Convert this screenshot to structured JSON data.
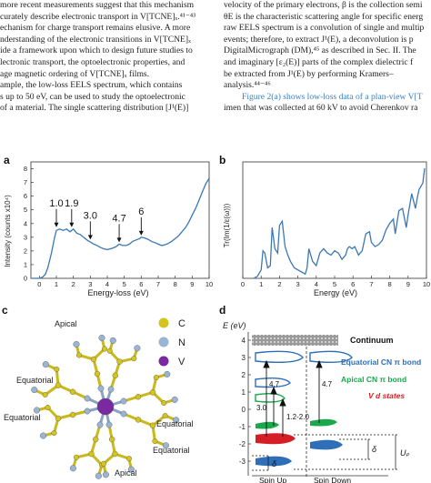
{
  "text": {
    "left": [
      "more recent measurements suggest that this mechanism",
      "curately describe electronic transport in V[TCNE]ₓ.⁴¹⁻⁴³",
      "echanism for charge transport remains elusive. A more",
      "nderstanding of the electronic transitions in V[TCNE]ₓ",
      "ide a framework upon which to design future studies to",
      "lectronic transport, the optoelectronic properties, and",
      "age magnetic ordering of V[TCNE]ₓ films.",
      "ample, the low-loss EELS spectrum, which contains",
      "s up to 50 eV, can be used to study the optoelectronic",
      "of a material. The single scattering distribution [J¹(E)]"
    ],
    "right": [
      "velocity of the primary electrons, β is the collection semi",
      "θE is the characteristic scattering angle for specific energ",
      "raw EELS spectrum is a convolution of single and multip",
      "events; therefore, to extract J¹(E), a deconvolution is p",
      "DigitalMicrograph (DM),⁴⁵ as described in Sec. II. The",
      "and imaginary [ε₂(E)] parts of the complex dielectric f",
      "be extracted from J¹(E) by performing Kramers–",
      "analysis.⁴⁴⁻⁴⁶",
      "Figure 2(a) shows low-loss data of a plan-view V[T",
      "imen that was collected at 60 kV to avoid Cherenkov ra"
    ]
  },
  "panels": {
    "a": "a",
    "b": "b",
    "c": "c",
    "d": "d"
  },
  "chart_a": {
    "type": "line",
    "xlabel": "Energy-loss (eV)",
    "ylabel": "Intensity (counts x10⁴)",
    "xticks": [
      "0",
      "1",
      "2",
      "3",
      "4",
      "5",
      "6",
      "7",
      "8",
      "9",
      "10"
    ],
    "yticks": [
      "0",
      "1",
      "2",
      "3",
      "4",
      "5",
      "6",
      "7",
      "8"
    ],
    "xlim": [
      -0.5,
      10
    ],
    "ylim": [
      0,
      8.5
    ],
    "color": "#3b78b5",
    "x": [
      -0.5,
      -0.2,
      0,
      0.2,
      0.35,
      0.5,
      0.7,
      0.9,
      1.0,
      1.2,
      1.4,
      1.6,
      1.8,
      2.0,
      2.2,
      2.4,
      2.6,
      2.8,
      3.0,
      3.2,
      3.4,
      3.6,
      3.8,
      4.0,
      4.3,
      4.5,
      4.7,
      4.9,
      5.1,
      5.3,
      5.5,
      5.7,
      5.9,
      6.0,
      6.2,
      6.4,
      6.6,
      6.8,
      7.0,
      7.2,
      7.4,
      7.6,
      7.8,
      8.0,
      8.2,
      8.4,
      8.6,
      8.8,
      9.0,
      9.2,
      9.4,
      9.6,
      9.8,
      10.0
    ],
    "y": [
      0,
      0,
      0,
      0.1,
      0.3,
      0.8,
      1.8,
      3.0,
      3.5,
      3.6,
      3.5,
      3.6,
      3.4,
      3.6,
      3.3,
      3.2,
      3.0,
      2.8,
      2.65,
      2.5,
      2.4,
      2.25,
      2.15,
      2.1,
      2.2,
      2.3,
      2.5,
      2.4,
      2.4,
      2.5,
      2.7,
      2.8,
      2.9,
      3.0,
      2.95,
      2.85,
      2.7,
      2.6,
      2.5,
      2.4,
      2.45,
      2.55,
      2.7,
      2.9,
      3.1,
      3.4,
      3.7,
      4.1,
      4.6,
      5.1,
      5.7,
      6.3,
      6.9,
      7.3
    ],
    "annotations": [
      {
        "label": "1.0",
        "x": 1.0,
        "y": 3.6
      },
      {
        "label": "1.9",
        "x": 1.9,
        "y": 3.6
      },
      {
        "label": "3.0",
        "x": 3.0,
        "y": 2.7
      },
      {
        "label": "4.7",
        "x": 4.7,
        "y": 2.5
      },
      {
        "label": "6",
        "x": 6.0,
        "y": 3.0
      }
    ]
  },
  "chart_b": {
    "type": "line",
    "xlabel": "Energy (eV)",
    "ylabel": "Tr(Im(1/ε(ω)))",
    "xticks": [
      "0",
      "1",
      "2",
      "3",
      "4",
      "5",
      "6",
      "7",
      "8",
      "9",
      "10"
    ],
    "xlim": [
      0,
      10
    ],
    "ylim": [
      0,
      0.55
    ],
    "color": "#3b78b5",
    "x": [
      0.6,
      0.8,
      1.0,
      1.1,
      1.2,
      1.35,
      1.5,
      1.6,
      1.75,
      1.9,
      2.0,
      2.15,
      2.3,
      2.45,
      2.6,
      2.8,
      3.0,
      3.2,
      3.4,
      3.5,
      3.6,
      3.8,
      4.0,
      4.2,
      4.4,
      4.6,
      4.8,
      5.0,
      5.2,
      5.4,
      5.6,
      5.7,
      5.8,
      5.95,
      6.1,
      6.3,
      6.5,
      6.7,
      6.9,
      7.0,
      7.2,
      7.4,
      7.6,
      7.8,
      8.0,
      8.2,
      8.3,
      8.5,
      8.7,
      8.9,
      9.0,
      9.2,
      9.4,
      9.5,
      9.6,
      9.8,
      9.9
    ],
    "y": [
      0,
      0.01,
      0.04,
      0.13,
      0.12,
      0.05,
      0.06,
      0.24,
      0.14,
      0.12,
      0.25,
      0.27,
      0.15,
      0.11,
      0.08,
      0.05,
      0.04,
      0.03,
      0.02,
      0.05,
      0.14,
      0.08,
      0.06,
      0.12,
      0.14,
      0.12,
      0.11,
      0.13,
      0.12,
      0.09,
      0.11,
      0.14,
      0.15,
      0.14,
      0.15,
      0.11,
      0.13,
      0.21,
      0.22,
      0.17,
      0.15,
      0.16,
      0.18,
      0.23,
      0.26,
      0.28,
      0.21,
      0.32,
      0.33,
      0.24,
      0.3,
      0.4,
      0.33,
      0.38,
      0.42,
      0.45,
      0.52
    ]
  },
  "diagram_c": {
    "labels": [
      "Apical",
      "Equatorial",
      "Equatorial",
      "Equatorial",
      "Equatorial",
      "Apical"
    ],
    "legend": [
      {
        "label": "C",
        "color": "#d4c51e"
      },
      {
        "label": "N",
        "color": "#9ab4d4"
      },
      {
        "label": "V",
        "color": "#7a2aa0"
      }
    ]
  },
  "diagram_d": {
    "ylabel": "E (eV)",
    "yticks": [
      "-3",
      "-2",
      "-1",
      "0",
      "1",
      "2",
      "3",
      "4"
    ],
    "continuum": "Continuum",
    "legend": [
      {
        "label": "Equatorial CN π bond",
        "color": "#2e6fb8"
      },
      {
        "label": "Apical CN π bond",
        "color": "#1aa84c"
      },
      {
        "label": "V d states",
        "color": "#d51f26"
      }
    ],
    "values": [
      "4.7",
      "4.7",
      "3.0",
      "1.2-2.0"
    ],
    "delta1": "δ",
    "delta2": "δ",
    "up": "Uₚ",
    "spin_up": "Spin Up",
    "spin_down": "Spin Down"
  }
}
